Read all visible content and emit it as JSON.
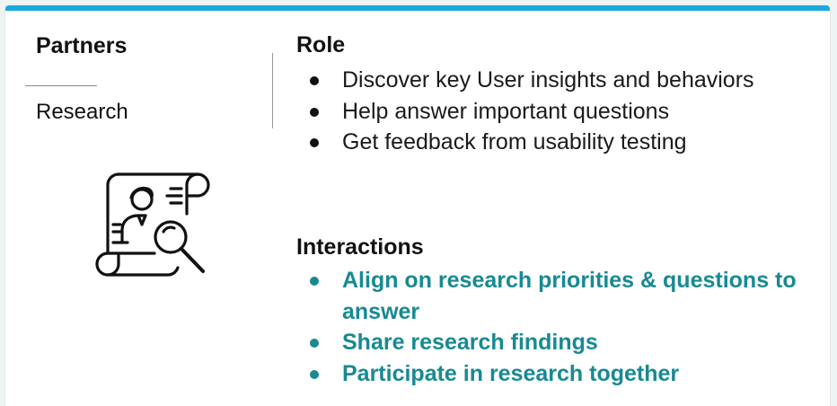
{
  "accent_color": "#1aa9dc",
  "teal_color": "#178a92",
  "partners": {
    "heading": "Partners",
    "name": "Research",
    "icon": "researcher-document-magnifier-icon"
  },
  "role": {
    "heading": "Role",
    "items": [
      "Discover key User insights and behaviors",
      "Help answer important questions",
      "Get feedback from usability testing"
    ]
  },
  "interactions": {
    "heading": "Interactions",
    "items": [
      "Align on research priorities & questions to answer",
      "Share research findings",
      "Participate in research together"
    ]
  }
}
